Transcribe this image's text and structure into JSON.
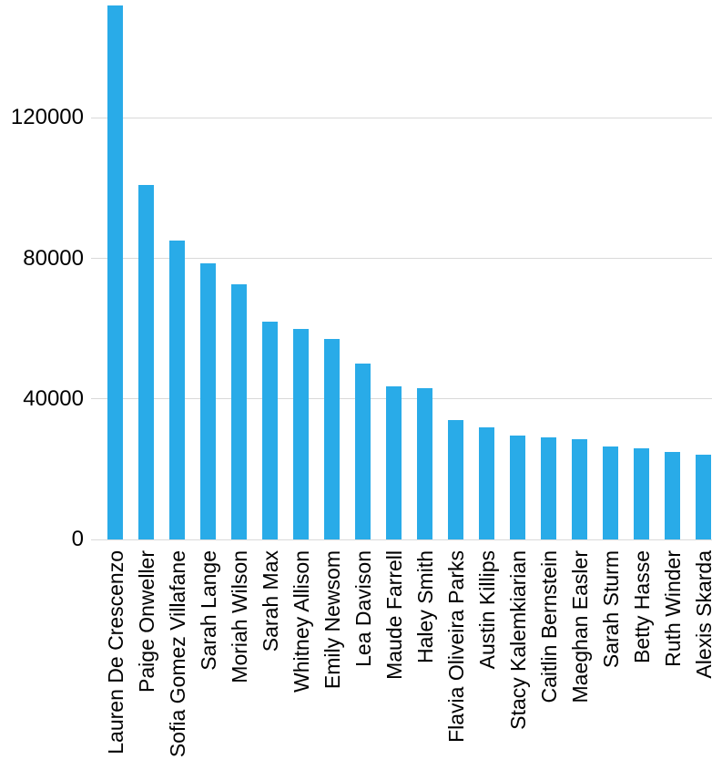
{
  "chart_data": {
    "type": "bar",
    "title": "",
    "xlabel": "",
    "ylabel": "",
    "categories": [
      "Lauren De Crescenzo",
      "Paige Onweller",
      "Sofia Gomez Villafane",
      "Sarah Lange",
      "Moriah Wilson",
      "Sarah Max",
      "Whitney Allison",
      "Emily Newsom",
      "Lea Davison",
      "Maude Farrell",
      "Haley Smith",
      "Flavia Oliveira Parks",
      "Austin Killips",
      "Stacy Kalemkiarian",
      "Caitlin Bernstein",
      "Maeghan Easler",
      "Sarah Sturm",
      "Betty Hasse",
      "Ruth Winder",
      "Alexis Skarda"
    ],
    "values": [
      152000,
      101000,
      85000,
      78500,
      72500,
      62000,
      60000,
      57000,
      50000,
      43500,
      43000,
      34000,
      32000,
      29500,
      29000,
      28500,
      26500,
      26000,
      25000,
      24000
    ],
    "ylim": [
      0,
      152000
    ],
    "yticks": [
      0,
      40000,
      80000,
      120000
    ],
    "grid": true,
    "legend": "none",
    "bar_color": "#29abe8",
    "gridline_color": "#d9d9d9",
    "text_color": "#000000",
    "background": "#ffffff"
  }
}
